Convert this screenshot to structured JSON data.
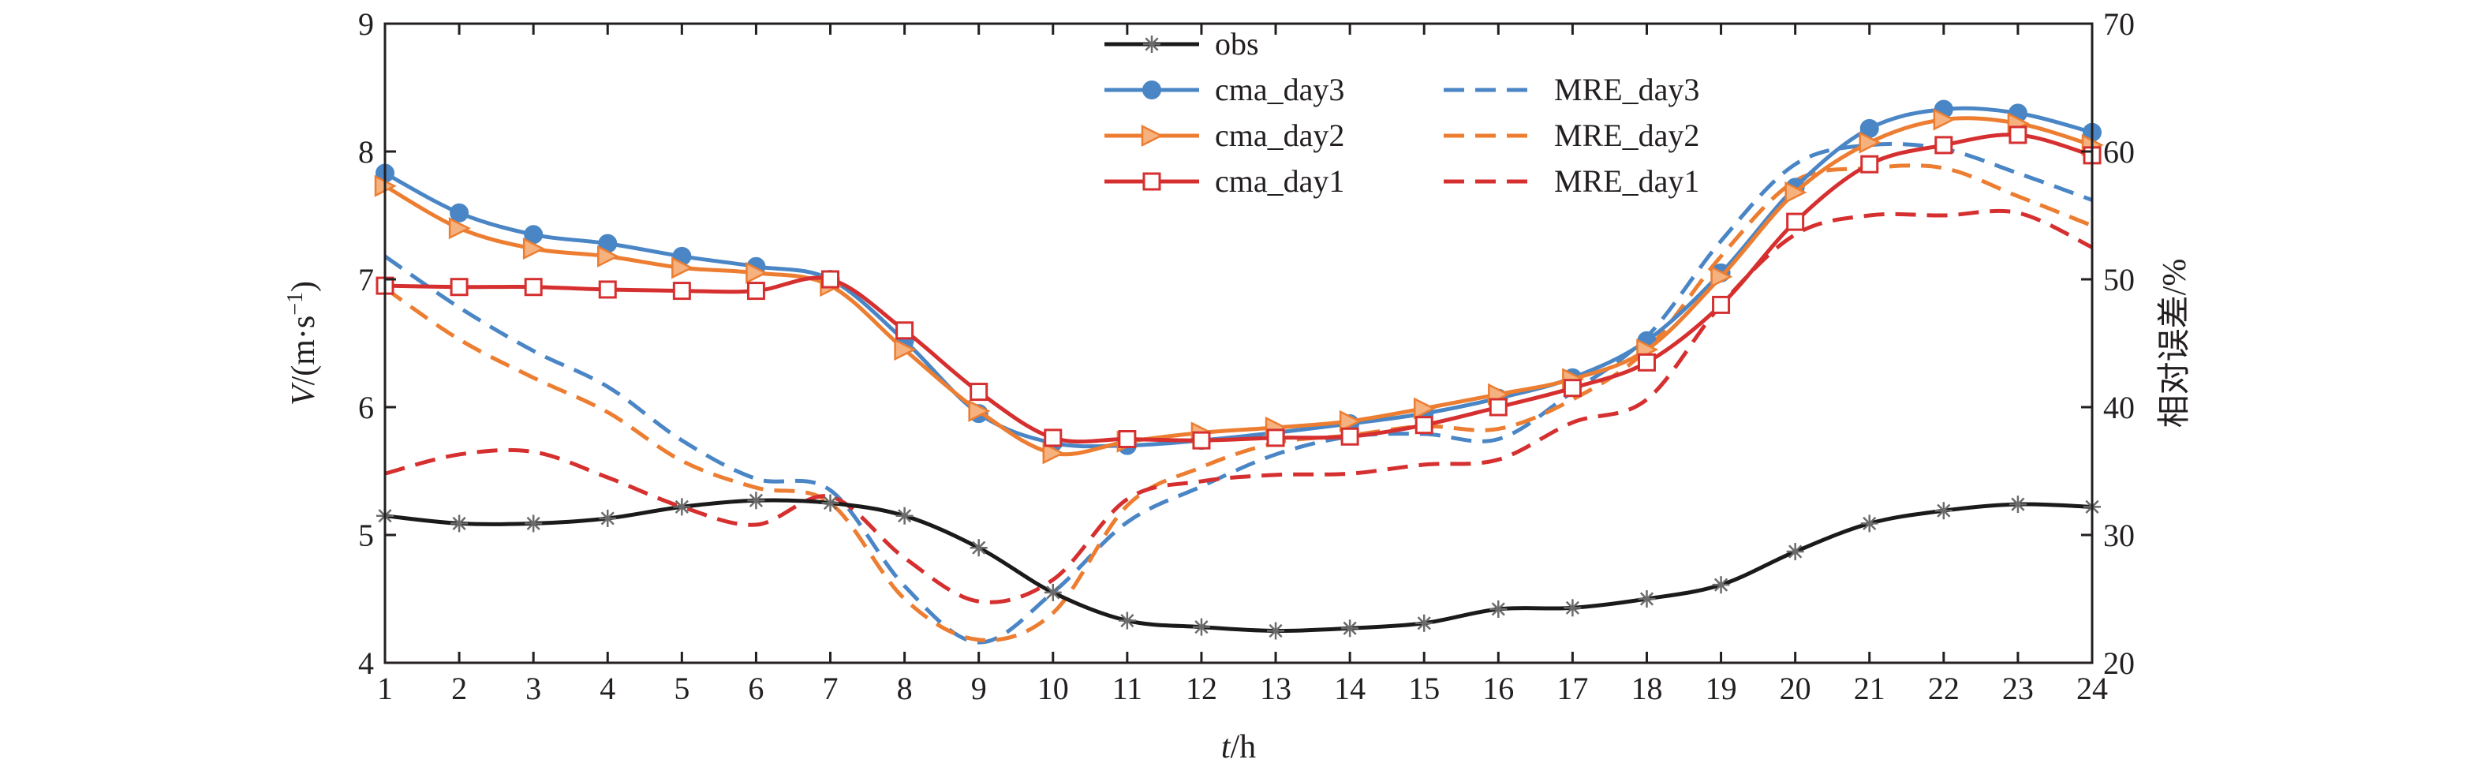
{
  "chart_data": {
    "type": "line",
    "x_axis": {
      "label_italic": "t",
      "label_rest": "/h",
      "range": [
        1,
        24
      ],
      "ticks": [
        "1",
        "2",
        "3",
        "4",
        "5",
        "6",
        "7",
        "8",
        "9",
        "10",
        "11",
        "12",
        "13",
        "14",
        "15",
        "16",
        "17",
        "18",
        "19",
        "20",
        "21",
        "22",
        "23",
        "24"
      ]
    },
    "y_left": {
      "label_italic": "V",
      "label_rest": "/(m·s",
      "label_sup": "−1",
      "label_close": ")",
      "range": [
        4,
        9
      ],
      "ticks": [
        "4",
        "5",
        "6",
        "7",
        "8",
        "9"
      ]
    },
    "y_right": {
      "label": "相对误差/%",
      "range": [
        20,
        70
      ],
      "ticks": [
        "20",
        "30",
        "40",
        "50",
        "60",
        "70"
      ]
    },
    "x": [
      1,
      2,
      3,
      4,
      5,
      6,
      7,
      8,
      9,
      10,
      11,
      12,
      13,
      14,
      15,
      16,
      17,
      18,
      19,
      20,
      21,
      22,
      23,
      24
    ],
    "series": [
      {
        "name": "obs",
        "axis": "left",
        "style": "solid",
        "marker": "asterisk",
        "color": "#1a1a1a",
        "values": [
          5.15,
          5.09,
          5.09,
          5.13,
          5.22,
          5.27,
          5.25,
          5.15,
          4.9,
          4.55,
          4.33,
          4.28,
          4.25,
          4.27,
          4.31,
          4.42,
          4.43,
          4.5,
          4.61,
          4.87,
          5.09,
          5.19,
          5.24,
          5.22
        ]
      },
      {
        "name": "cma_day3",
        "axis": "left",
        "style": "solid",
        "marker": "circle",
        "color": "#4a86c5",
        "values": [
          7.83,
          7.52,
          7.35,
          7.28,
          7.18,
          7.1,
          7.0,
          6.52,
          5.95,
          5.72,
          5.7,
          5.74,
          5.8,
          5.87,
          5.95,
          6.07,
          6.23,
          6.52,
          7.05,
          7.72,
          8.18,
          8.33,
          8.3,
          8.15
        ]
      },
      {
        "name": "cma_day2",
        "axis": "left",
        "style": "solid",
        "marker": "triangle",
        "color": "#ec7d31",
        "values": [
          7.73,
          7.4,
          7.24,
          7.18,
          7.09,
          7.05,
          6.95,
          6.45,
          5.97,
          5.64,
          5.73,
          5.8,
          5.84,
          5.89,
          5.99,
          6.1,
          6.22,
          6.45,
          7.02,
          7.68,
          8.07,
          8.25,
          8.22,
          8.05
        ]
      },
      {
        "name": "cma_day1",
        "axis": "left",
        "style": "solid",
        "marker": "square",
        "color": "#d62f2f",
        "values": [
          6.95,
          6.94,
          6.94,
          6.92,
          6.91,
          6.91,
          7.0,
          6.6,
          6.12,
          5.76,
          5.75,
          5.74,
          5.76,
          5.77,
          5.86,
          6.0,
          6.15,
          6.35,
          6.8,
          7.45,
          7.9,
          8.05,
          8.13,
          7.97
        ]
      },
      {
        "name": "MRE_day3",
        "axis": "right",
        "style": "dashed",
        "marker": "none",
        "color": "#4a86c5",
        "values": [
          51.8,
          47.8,
          44.4,
          41.6,
          37.4,
          34.4,
          33.5,
          26.0,
          21.6,
          25.5,
          31.0,
          33.8,
          36.3,
          37.7,
          37.9,
          37.5,
          41.2,
          45.5,
          53.0,
          59.0,
          60.5,
          60.2,
          58.3,
          56.2
        ]
      },
      {
        "name": "MRE_day2",
        "axis": "right",
        "style": "dashed",
        "marker": "none",
        "color": "#ec7d31",
        "values": [
          49.3,
          45.3,
          42.3,
          39.6,
          35.8,
          33.7,
          32.5,
          25.0,
          21.8,
          23.9,
          32.3,
          35.3,
          37.2,
          37.8,
          38.5,
          38.3,
          40.6,
          44.5,
          51.8,
          57.7,
          58.7,
          58.7,
          56.5,
          54.2
        ]
      },
      {
        "name": "MRE_day1",
        "axis": "right",
        "style": "dashed",
        "marker": "none",
        "color": "#d62f2f",
        "values": [
          34.8,
          36.3,
          36.5,
          34.5,
          32.2,
          30.8,
          33.0,
          28.2,
          24.8,
          26.5,
          32.8,
          34.2,
          34.7,
          34.8,
          35.5,
          35.9,
          38.8,
          40.6,
          48.0,
          53.5,
          55.0,
          55.0,
          55.2,
          52.5
        ]
      }
    ],
    "legend": {
      "placement": "top-center",
      "columns": [
        [
          "obs",
          "cma_day3",
          "cma_day2",
          "cma_day1"
        ],
        [
          "MRE_day3",
          "MRE_day2",
          "MRE_day1"
        ]
      ]
    },
    "grid": false
  }
}
